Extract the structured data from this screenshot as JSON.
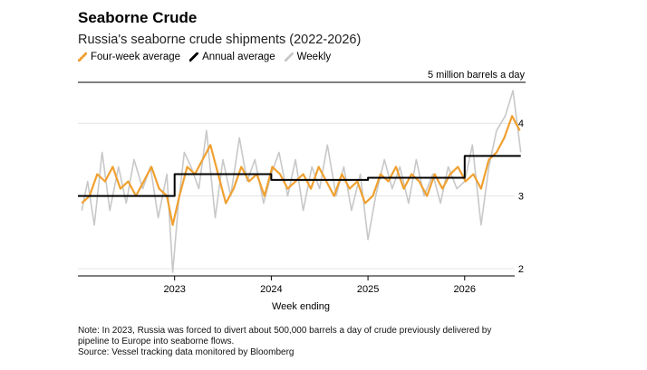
{
  "header": {
    "title": "Seaborne Crude",
    "subtitle": "Russia's seaborne crude shipments (2022-2026)"
  },
  "legend": [
    {
      "label": "Four-week average",
      "color": "#f0a030"
    },
    {
      "label": "Annual average",
      "color": "#000000"
    },
    {
      "label": "Weekly",
      "color": "#c8c8c8"
    }
  ],
  "footer": {
    "note": "Note: In 2023, Russia was forced to divert about 500,000 barrels a day of crude previously delivered by pipeline to Europe into seaborne flows.",
    "source": "Source: Vessel tracking data monitored by Bloomberg"
  },
  "chart_data": {
    "type": "line",
    "title": "Seaborne Crude",
    "subtitle": "Russia's seaborne crude shipments (2022-2026)",
    "unit_label": "5 million barrels a day",
    "xlabel": "Week ending",
    "ylabel": "",
    "x_ticks": [
      "2023",
      "2024",
      "2025",
      "2026"
    ],
    "y_ticks": [
      2,
      3,
      4
    ],
    "xlim": [
      2022.0,
      2026.63
    ],
    "ylim": [
      1.9,
      4.6
    ],
    "grid": "horizontal",
    "legend_position": "top-left",
    "series": [
      {
        "name": "Weekly",
        "color": "#c8c8c8",
        "x": [
          2022.04,
          2022.1,
          2022.17,
          2022.25,
          2022.33,
          2022.42,
          2022.5,
          2022.58,
          2022.67,
          2022.75,
          2022.83,
          2022.92,
          2022.98,
          2023.04,
          2023.1,
          2023.17,
          2023.25,
          2023.33,
          2023.42,
          2023.5,
          2023.58,
          2023.67,
          2023.75,
          2023.83,
          2023.92,
          2024.0,
          2024.08,
          2024.17,
          2024.25,
          2024.33,
          2024.42,
          2024.5,
          2024.58,
          2024.67,
          2024.75,
          2024.83,
          2024.92,
          2025.0,
          2025.08,
          2025.17,
          2025.25,
          2025.33,
          2025.42,
          2025.5,
          2025.58,
          2025.67,
          2025.75,
          2025.83,
          2025.92,
          2026.0,
          2026.08,
          2026.17,
          2026.25,
          2026.33,
          2026.42,
          2026.5,
          2026.58
        ],
        "values": [
          2.8,
          3.2,
          2.6,
          3.6,
          2.8,
          3.4,
          2.9,
          3.5,
          3.1,
          3.4,
          2.7,
          3.3,
          1.95,
          2.9,
          3.6,
          3.4,
          3.1,
          3.9,
          2.7,
          3.5,
          3.0,
          3.8,
          3.2,
          3.5,
          2.9,
          3.3,
          3.6,
          3.0,
          3.5,
          2.8,
          3.4,
          3.1,
          3.7,
          3.0,
          3.4,
          2.8,
          3.3,
          2.4,
          3.0,
          3.5,
          3.1,
          3.4,
          2.9,
          3.5,
          3.0,
          3.3,
          2.9,
          3.4,
          3.1,
          3.2,
          3.7,
          2.6,
          3.4,
          3.9,
          4.1,
          4.45,
          3.6
        ]
      },
      {
        "name": "Four-week average",
        "color": "#f0a030",
        "x": [
          2022.04,
          2022.12,
          2022.2,
          2022.28,
          2022.36,
          2022.44,
          2022.52,
          2022.6,
          2022.68,
          2022.76,
          2022.84,
          2022.92,
          2022.98,
          2023.05,
          2023.13,
          2023.21,
          2023.29,
          2023.37,
          2023.45,
          2023.53,
          2023.61,
          2023.69,
          2023.77,
          2023.85,
          2023.93,
          2024.01,
          2024.09,
          2024.17,
          2024.25,
          2024.33,
          2024.41,
          2024.49,
          2024.57,
          2024.65,
          2024.73,
          2024.81,
          2024.89,
          2024.97,
          2025.05,
          2025.13,
          2025.21,
          2025.29,
          2025.37,
          2025.45,
          2025.53,
          2025.61,
          2025.69,
          2025.77,
          2025.85,
          2025.93,
          2026.01,
          2026.09,
          2026.17,
          2026.25,
          2026.33,
          2026.41,
          2026.49,
          2026.57
        ],
        "values": [
          2.9,
          3.0,
          3.3,
          3.2,
          3.4,
          3.1,
          3.2,
          3.0,
          3.2,
          3.4,
          3.1,
          3.0,
          2.6,
          3.0,
          3.4,
          3.3,
          3.5,
          3.7,
          3.3,
          2.9,
          3.1,
          3.4,
          3.2,
          3.3,
          3.0,
          3.4,
          3.3,
          3.1,
          3.2,
          3.3,
          3.1,
          3.4,
          3.2,
          3.0,
          3.3,
          3.1,
          3.2,
          2.9,
          3.0,
          3.3,
          3.2,
          3.4,
          3.1,
          3.3,
          3.2,
          3.0,
          3.3,
          3.1,
          3.3,
          3.4,
          3.2,
          3.3,
          3.1,
          3.5,
          3.6,
          3.8,
          4.1,
          3.9
        ]
      },
      {
        "name": "Annual average",
        "color": "#000000",
        "step": true,
        "x": [
          2022.0,
          2023.0,
          2023.0,
          2024.0,
          2024.0,
          2025.0,
          2025.0,
          2026.0,
          2026.0,
          2026.58
        ],
        "values": [
          3.0,
          3.0,
          3.3,
          3.3,
          3.22,
          3.22,
          3.25,
          3.25,
          3.55,
          3.55
        ]
      }
    ]
  }
}
